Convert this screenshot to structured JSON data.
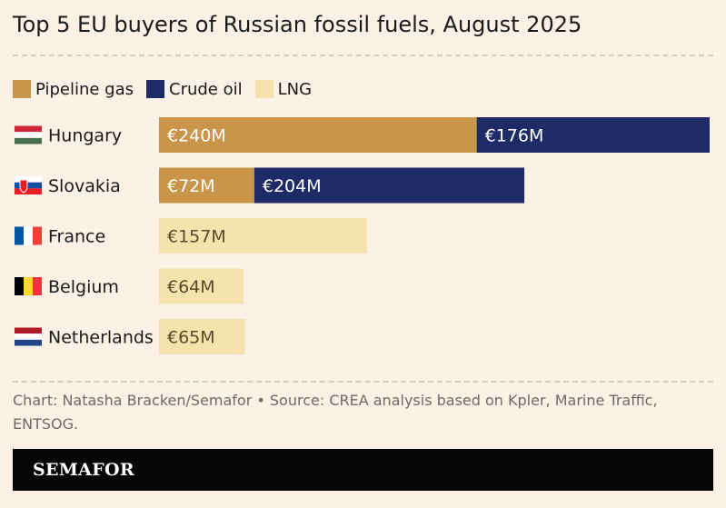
{
  "chart_data": {
    "type": "bar",
    "stacked": true,
    "orientation": "horizontal",
    "title": "Top 5 EU buyers of Russian fossil fuels, August 2025",
    "categories": [
      "Hungary",
      "Slovakia",
      "France",
      "Belgium",
      "Netherlands"
    ],
    "series": [
      {
        "name": "Pipeline gas",
        "color": "#c8954a",
        "values": [
          240,
          72,
          0,
          0,
          0
        ],
        "labels": [
          "€240M",
          "€72M",
          "",
          "",
          ""
        ]
      },
      {
        "name": "Crude oil",
        "color": "#1f2b66",
        "values": [
          176,
          204,
          0,
          0,
          0
        ],
        "labels": [
          "€176M",
          "€204M",
          "",
          "",
          ""
        ]
      },
      {
        "name": "LNG",
        "color": "#f6e2ad",
        "values": [
          0,
          0,
          157,
          64,
          65
        ],
        "labels": [
          "",
          "",
          "€157M",
          "€64M",
          "€65M"
        ]
      }
    ],
    "xlim": [
      0,
      416
    ],
    "unit": "€M",
    "legend_position": "top-left",
    "grid": false
  },
  "flags": [
    "hungary-flag-icon",
    "slovakia-flag-icon",
    "france-flag-icon",
    "belgium-flag-icon",
    "netherlands-flag-icon"
  ],
  "source": "Chart: Natasha Bracken/Semafor • Source: CREA analysis based on Kpler, Marine Traffic, ENTSOG.",
  "brand": "SEMAFOR"
}
